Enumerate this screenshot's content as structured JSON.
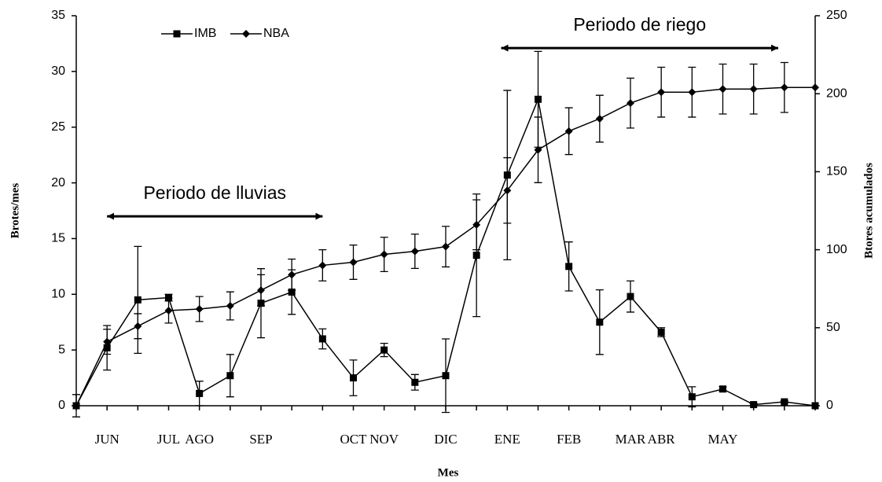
{
  "chart_data": {
    "type": "line",
    "x_label": "Mes",
    "y_label": "Brotes/mes",
    "y2_label": "Btores acumulados",
    "categories": [
      null,
      "JUN",
      null,
      "JUL",
      "AGO",
      null,
      "SEP",
      null,
      null,
      "OCT",
      "NOV",
      null,
      "DIC",
      null,
      "ENE",
      null,
      "FEB",
      null,
      "MAR",
      "ABR",
      null,
      "MAY",
      null,
      null,
      null
    ],
    "ylim": [
      0,
      35
    ],
    "yticks": [
      0,
      5,
      10,
      15,
      20,
      25,
      30,
      35
    ],
    "y2lim": [
      0,
      250
    ],
    "y2ticks": [
      0,
      50,
      100,
      150,
      200,
      250
    ],
    "legend": "top-left",
    "annotations": [
      {
        "text": "Periodo de lluvias",
        "from": 1,
        "to": 8,
        "y": 17
      },
      {
        "text": "Periodo de riego",
        "from": 13.8,
        "to": 22.8,
        "y": 32.1
      }
    ],
    "series": [
      {
        "name": "IMB",
        "color": "#000000",
        "marker": "square",
        "values": [
          0,
          5.2,
          9.5,
          9.7,
          1.1,
          2.7,
          9.2,
          10.2,
          6.0,
          2.5,
          5.0,
          2.1,
          2.7,
          13.5,
          20.7,
          27.5,
          12.5,
          7.5,
          9.8,
          6.6,
          0.8,
          1.5,
          0.1,
          0.35,
          0
        ],
        "errors": [
          1,
          2,
          4.8,
          0.3,
          1.1,
          1.9,
          3.1,
          2,
          0.9,
          1.6,
          0.6,
          0.7,
          3.3,
          5.5,
          7.6,
          4.3,
          2.2,
          2.9,
          1.4,
          0.4,
          0.9,
          0.2,
          0.1,
          0.1,
          0
        ]
      },
      {
        "name": "NBA",
        "color": "#000000",
        "marker": "diamond",
        "axis": "y2",
        "values": [
          0,
          41,
          51,
          61,
          62,
          64,
          74,
          84,
          90,
          92,
          97,
          99,
          102,
          116,
          138,
          164,
          176,
          184,
          194,
          201,
          201,
          203,
          203,
          204,
          204
        ],
        "errors": [
          0,
          8,
          8,
          8,
          8,
          9,
          10,
          10,
          10,
          11,
          11,
          11,
          13,
          16,
          21,
          21,
          15,
          15,
          16,
          16,
          16,
          16,
          16,
          16,
          0
        ]
      }
    ]
  }
}
